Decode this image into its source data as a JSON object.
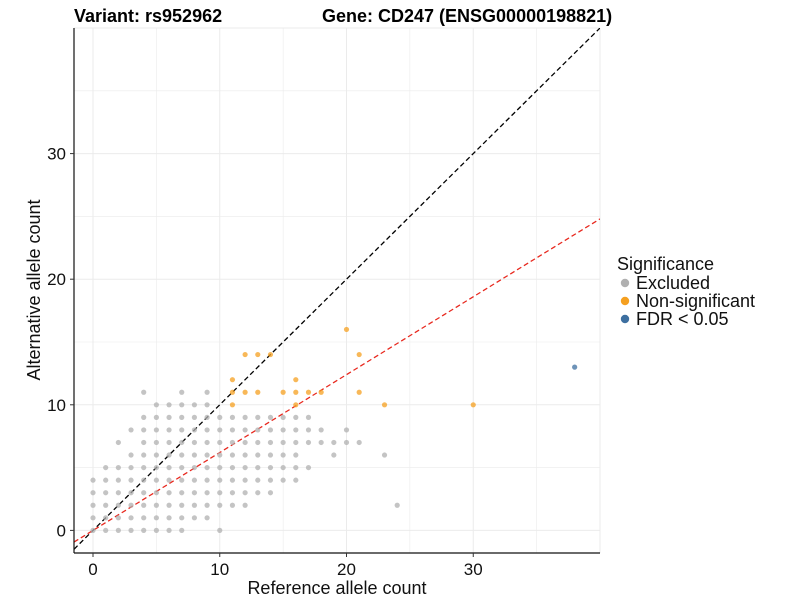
{
  "chart_data": {
    "type": "scatter",
    "title_left": "Variant: rs952962",
    "title_right": "Gene: CD247 (ENSG00000198821)",
    "xlabel": "Reference allele count",
    "ylabel": "Alternative allele count",
    "xlim": [
      -1.5,
      40
    ],
    "ylim": [
      -1.8,
      40
    ],
    "xticks": [
      0,
      10,
      20,
      30
    ],
    "yticks": [
      0,
      10,
      20,
      30
    ],
    "grid": true,
    "legend": {
      "title": "Significance",
      "position": "right",
      "entries": [
        {
          "label": "Excluded",
          "color": "#b0b0b0"
        },
        {
          "label": "Non-significant",
          "color": "#f5a020"
        },
        {
          "label": "FDR < 0.05",
          "color": "#3d6fa0"
        }
      ]
    },
    "reference_lines": [
      {
        "name": "identity",
        "slope": 1,
        "intercept": 0,
        "color": "#000000",
        "dash": true
      },
      {
        "name": "fit",
        "slope": 0.62,
        "intercept": 0,
        "color": "#e8281e",
        "dash": true
      }
    ],
    "series": [
      {
        "name": "Excluded",
        "color": "#b0b0b0",
        "points": [
          [
            0,
            0
          ],
          [
            0,
            1
          ],
          [
            0,
            2
          ],
          [
            0,
            3
          ],
          [
            0,
            4
          ],
          [
            1,
            0
          ],
          [
            1,
            1
          ],
          [
            1,
            2
          ],
          [
            1,
            3
          ],
          [
            1,
            4
          ],
          [
            1,
            5
          ],
          [
            2,
            0
          ],
          [
            2,
            1
          ],
          [
            2,
            2
          ],
          [
            2,
            3
          ],
          [
            2,
            4
          ],
          [
            2,
            5
          ],
          [
            2,
            7
          ],
          [
            3,
            0
          ],
          [
            3,
            1
          ],
          [
            3,
            2
          ],
          [
            3,
            3
          ],
          [
            3,
            4
          ],
          [
            3,
            5
          ],
          [
            3,
            6
          ],
          [
            3,
            8
          ],
          [
            4,
            0
          ],
          [
            4,
            1
          ],
          [
            4,
            2
          ],
          [
            4,
            3
          ],
          [
            4,
            4
          ],
          [
            4,
            5
          ],
          [
            4,
            6
          ],
          [
            4,
            7
          ],
          [
            4,
            8
          ],
          [
            4,
            9
          ],
          [
            4,
            11
          ],
          [
            5,
            0
          ],
          [
            5,
            1
          ],
          [
            5,
            2
          ],
          [
            5,
            3
          ],
          [
            5,
            4
          ],
          [
            5,
            5
          ],
          [
            5,
            6
          ],
          [
            5,
            7
          ],
          [
            5,
            8
          ],
          [
            5,
            9
          ],
          [
            5,
            10
          ],
          [
            6,
            0
          ],
          [
            6,
            1
          ],
          [
            6,
            2
          ],
          [
            6,
            3
          ],
          [
            6,
            4
          ],
          [
            6,
            5
          ],
          [
            6,
            6
          ],
          [
            6,
            7
          ],
          [
            6,
            8
          ],
          [
            6,
            9
          ],
          [
            6,
            10
          ],
          [
            7,
            0
          ],
          [
            7,
            1
          ],
          [
            7,
            2
          ],
          [
            7,
            3
          ],
          [
            7,
            4
          ],
          [
            7,
            5
          ],
          [
            7,
            6
          ],
          [
            7,
            7
          ],
          [
            7,
            8
          ],
          [
            7,
            9
          ],
          [
            7,
            10
          ],
          [
            7,
            11
          ],
          [
            8,
            1
          ],
          [
            8,
            2
          ],
          [
            8,
            3
          ],
          [
            8,
            4
          ],
          [
            8,
            5
          ],
          [
            8,
            6
          ],
          [
            8,
            7
          ],
          [
            8,
            8
          ],
          [
            8,
            9
          ],
          [
            8,
            10
          ],
          [
            9,
            1
          ],
          [
            9,
            2
          ],
          [
            9,
            3
          ],
          [
            9,
            4
          ],
          [
            9,
            5
          ],
          [
            9,
            6
          ],
          [
            9,
            7
          ],
          [
            9,
            8
          ],
          [
            9,
            9
          ],
          [
            9,
            10
          ],
          [
            9,
            11
          ],
          [
            10,
            0
          ],
          [
            10,
            2
          ],
          [
            10,
            3
          ],
          [
            10,
            4
          ],
          [
            10,
            5
          ],
          [
            10,
            6
          ],
          [
            10,
            7
          ],
          [
            10,
            8
          ],
          [
            10,
            9
          ],
          [
            11,
            2
          ],
          [
            11,
            3
          ],
          [
            11,
            4
          ],
          [
            11,
            5
          ],
          [
            11,
            6
          ],
          [
            11,
            7
          ],
          [
            11,
            8
          ],
          [
            11,
            9
          ],
          [
            12,
            2
          ],
          [
            12,
            3
          ],
          [
            12,
            4
          ],
          [
            12,
            5
          ],
          [
            12,
            6
          ],
          [
            12,
            7
          ],
          [
            12,
            8
          ],
          [
            12,
            9
          ],
          [
            13,
            3
          ],
          [
            13,
            4
          ],
          [
            13,
            5
          ],
          [
            13,
            6
          ],
          [
            13,
            7
          ],
          [
            13,
            8
          ],
          [
            13,
            9
          ],
          [
            14,
            3
          ],
          [
            14,
            4
          ],
          [
            14,
            5
          ],
          [
            14,
            6
          ],
          [
            14,
            7
          ],
          [
            14,
            8
          ],
          [
            14,
            9
          ],
          [
            15,
            4
          ],
          [
            15,
            5
          ],
          [
            15,
            6
          ],
          [
            15,
            7
          ],
          [
            15,
            8
          ],
          [
            15,
            9
          ],
          [
            16,
            4
          ],
          [
            16,
            5
          ],
          [
            16,
            6
          ],
          [
            16,
            7
          ],
          [
            16,
            8
          ],
          [
            16,
            9
          ],
          [
            17,
            5
          ],
          [
            17,
            7
          ],
          [
            17,
            8
          ],
          [
            17,
            9
          ],
          [
            18,
            7
          ],
          [
            18,
            8
          ],
          [
            19,
            6
          ],
          [
            19,
            7
          ],
          [
            20,
            7
          ],
          [
            20,
            8
          ],
          [
            21,
            7
          ],
          [
            23,
            6
          ],
          [
            24,
            2
          ]
        ]
      },
      {
        "name": "Non-significant",
        "color": "#f5a020",
        "points": [
          [
            11,
            10
          ],
          [
            11,
            11
          ],
          [
            11,
            12
          ],
          [
            12,
            11
          ],
          [
            12,
            14
          ],
          [
            13,
            11
          ],
          [
            13,
            14
          ],
          [
            14,
            14
          ],
          [
            15,
            11
          ],
          [
            16,
            10
          ],
          [
            16,
            11
          ],
          [
            16,
            12
          ],
          [
            17,
            11
          ],
          [
            18,
            11
          ],
          [
            20,
            16
          ],
          [
            21,
            11
          ],
          [
            21,
            14
          ],
          [
            23,
            10
          ],
          [
            30,
            10
          ]
        ]
      },
      {
        "name": "FDR < 0.05",
        "color": "#3d6fa0",
        "points": [
          [
            38,
            13
          ]
        ]
      }
    ]
  }
}
